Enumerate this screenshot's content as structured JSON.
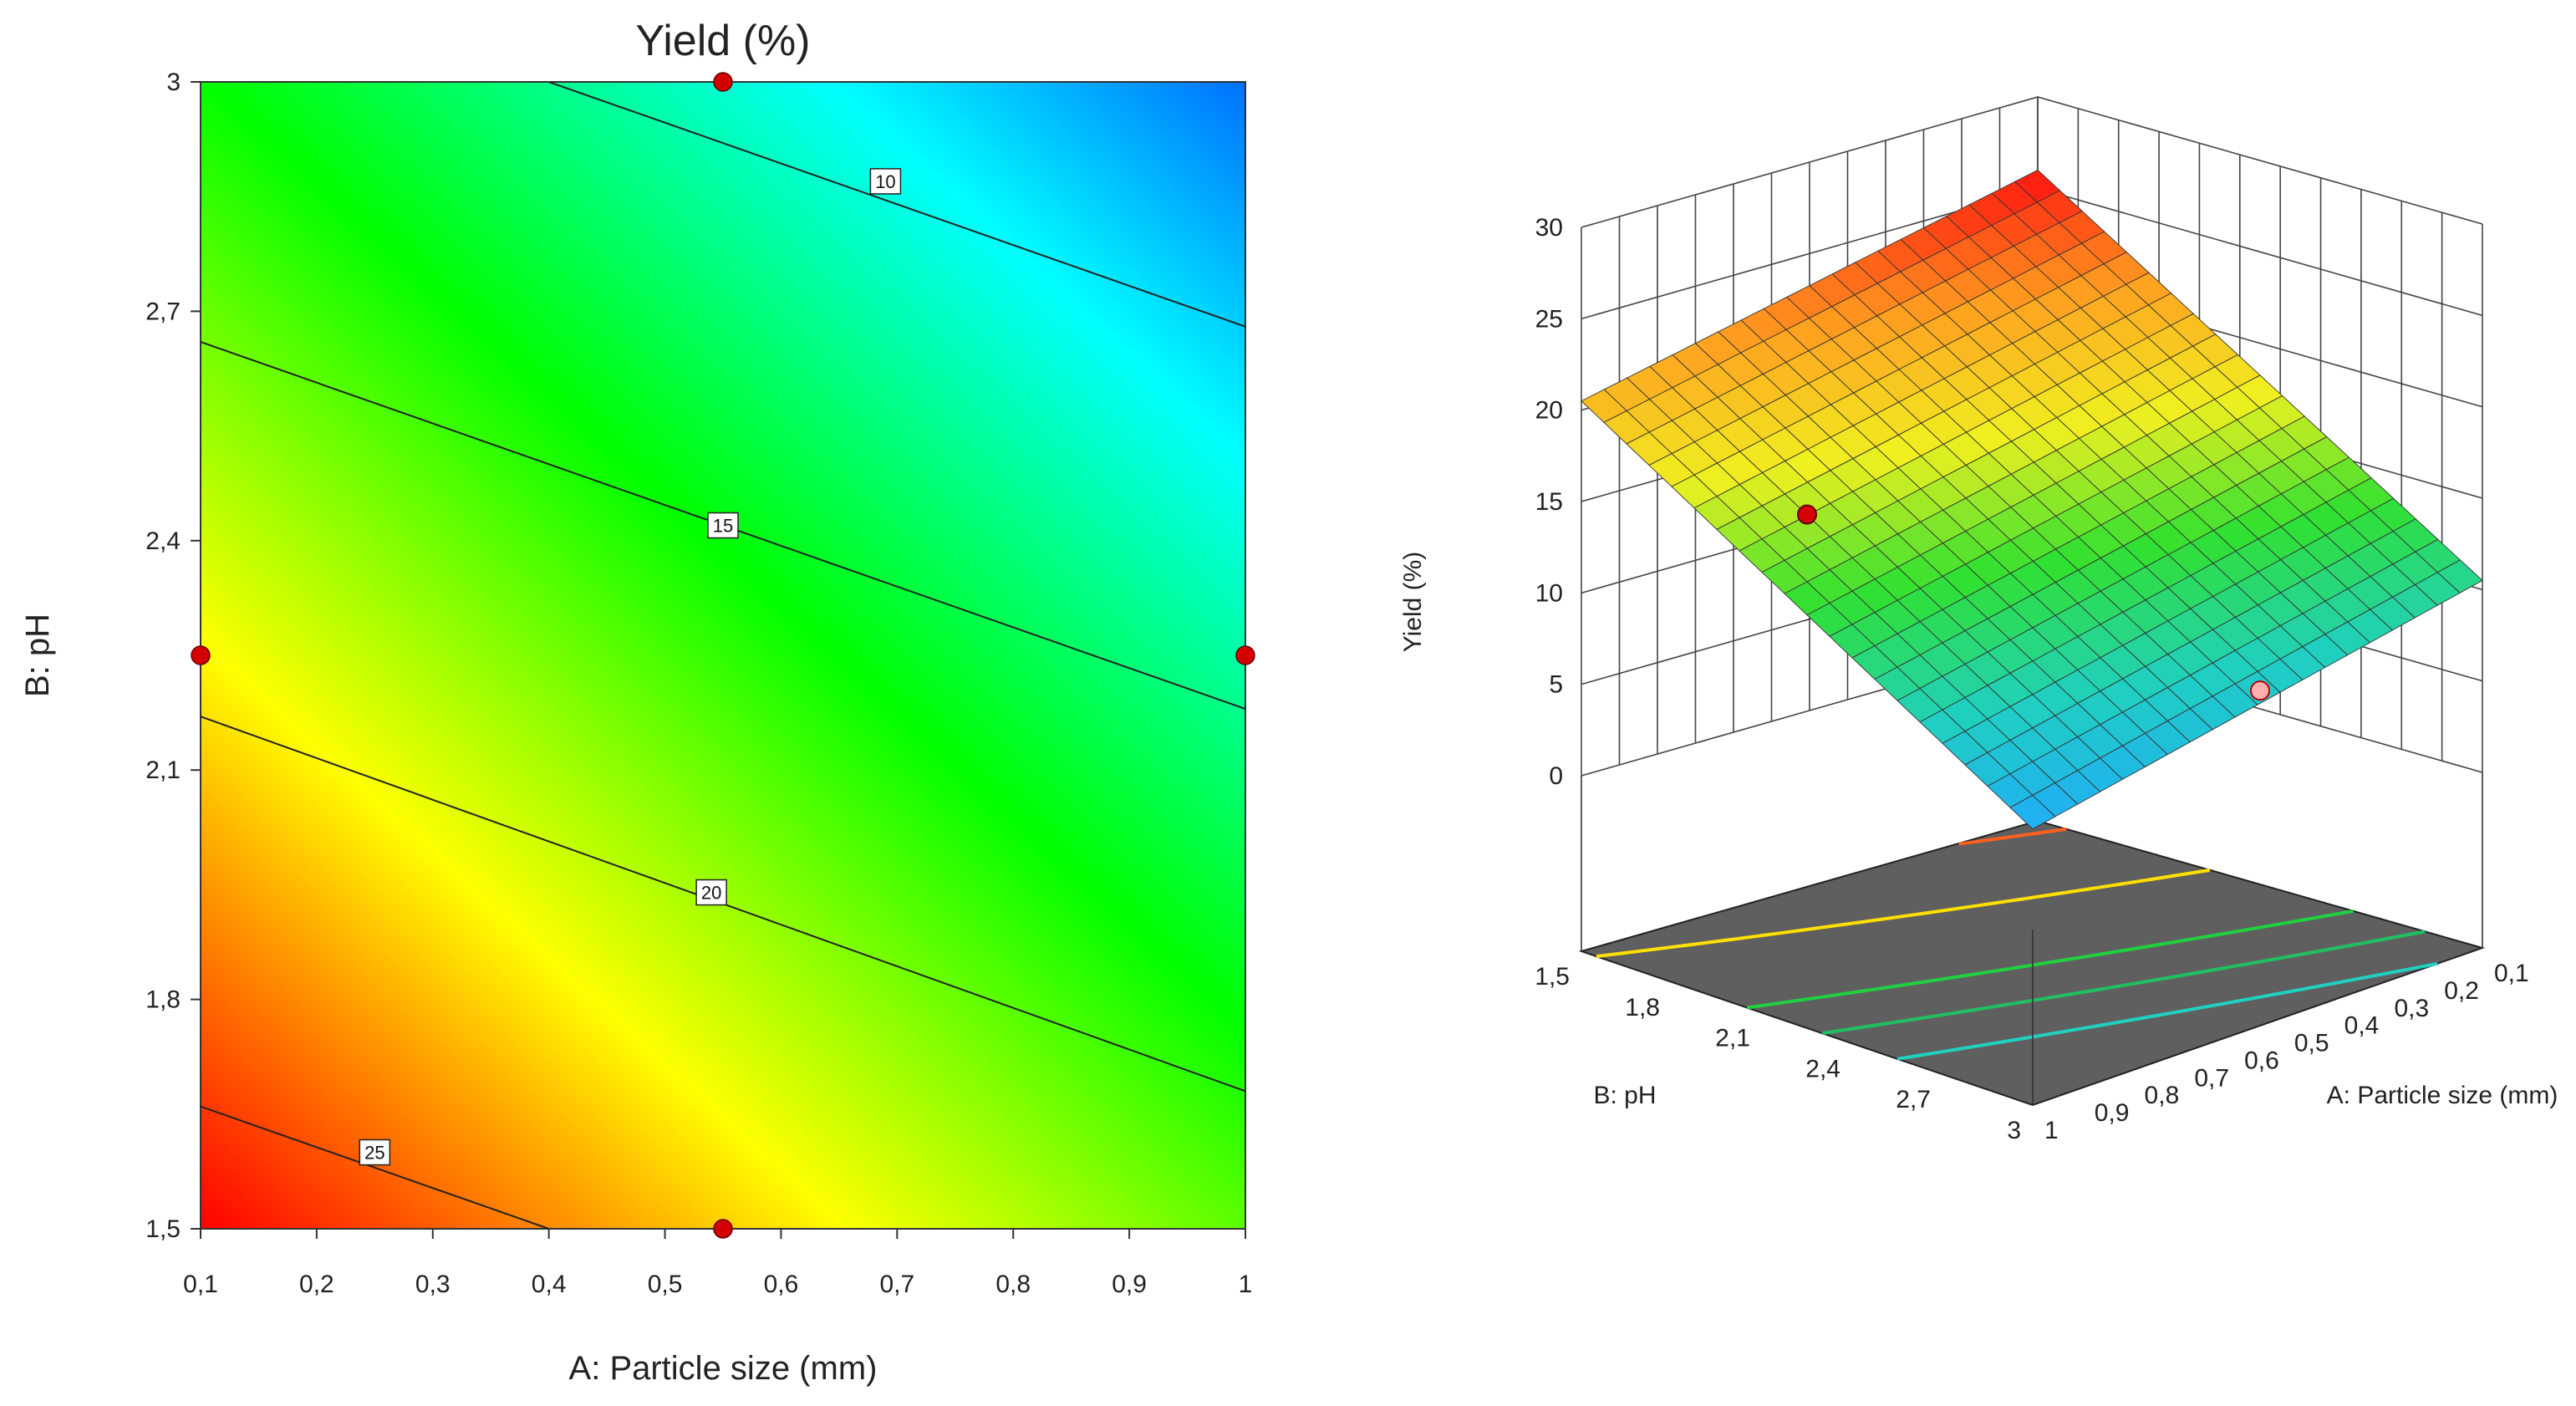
{
  "chart_data": [
    {
      "type": "contour",
      "title": "Yield (%)",
      "xlabel": "A: Particle size (mm)",
      "ylabel": "B: pH",
      "xlim": [
        0.1,
        1
      ],
      "ylim": [
        1.5,
        3
      ],
      "x_ticks": [
        "0,1",
        "0,2",
        "0,3",
        "0,4",
        "0,5",
        "0,6",
        "0,7",
        "0,8",
        "0,9",
        "1"
      ],
      "y_ticks": [
        "1,5",
        "1,8",
        "2,1",
        "2,4",
        "2,7",
        "3"
      ],
      "colormap": [
        "#ff0000",
        "#ffff00",
        "#00ff00",
        "#00ffff",
        "#0070ff"
      ],
      "contours": [
        {
          "level": "10",
          "line": [
            [
              0.4,
              3.0
            ],
            [
              1.0,
              2.68
            ]
          ],
          "label_at": [
            0.69,
            2.87
          ]
        },
        {
          "level": "15",
          "line": [
            [
              0.1,
              2.66
            ],
            [
              1.0,
              2.18
            ]
          ],
          "label_at": [
            0.55,
            2.42
          ]
        },
        {
          "level": "20",
          "line": [
            [
              0.1,
              2.17
            ],
            [
              1.0,
              1.68
            ]
          ],
          "label_at": [
            0.54,
            1.94
          ]
        },
        {
          "level": "25",
          "line": [
            [
              0.1,
              1.66
            ],
            [
              0.4,
              1.5
            ]
          ],
          "label_at": [
            0.25,
            1.6
          ]
        }
      ],
      "design_points": [
        {
          "x": 0.55,
          "y": 3.0
        },
        {
          "x": 0.1,
          "y": 2.25
        },
        {
          "x": 1.0,
          "y": 2.25
        },
        {
          "x": 0.55,
          "y": 1.5
        }
      ],
      "design_point_color": "#d40000"
    },
    {
      "type": "surface",
      "zlabel": "Yield (%)",
      "xlabel": "A: Particle size (mm)",
      "ylabel": "B: pH",
      "zlim": [
        0,
        30
      ],
      "z_ticks": [
        "0",
        "5",
        "10",
        "15",
        "20",
        "25",
        "30"
      ],
      "x_ticks": [
        "1",
        "0,9",
        "0,8",
        "0,7",
        "0,6",
        "0,5",
        "0,4",
        "0,3",
        "0,2",
        "0,1"
      ],
      "y_ticks": [
        "1,5",
        "1,8",
        "2,1",
        "2,4",
        "2,7",
        "3"
      ],
      "corner_values": [
        {
          "particle_size": 1.0,
          "pH": 1.5,
          "yield": 20.5
        },
        {
          "particle_size": 0.1,
          "pH": 1.5,
          "yield": 26.0
        },
        {
          "particle_size": 0.1,
          "pH": 3.0,
          "yield": 10.5
        },
        {
          "particle_size": 1.0,
          "pH": 3.0,
          "yield": 5.5
        }
      ],
      "projected_contour_colors": [
        "#ff6020",
        "#ffe000",
        "#20d040",
        "#20c060",
        "#20d0c0"
      ],
      "floor_color": "#5f5f5f",
      "design_points": [
        {
          "particle_size": 1.0,
          "pH": 2.25,
          "yield": 18.5,
          "style": "above surface"
        },
        {
          "particle_size": 0.1,
          "pH": 2.25,
          "yield": 1.0,
          "style": "below surface"
        }
      ]
    }
  ]
}
